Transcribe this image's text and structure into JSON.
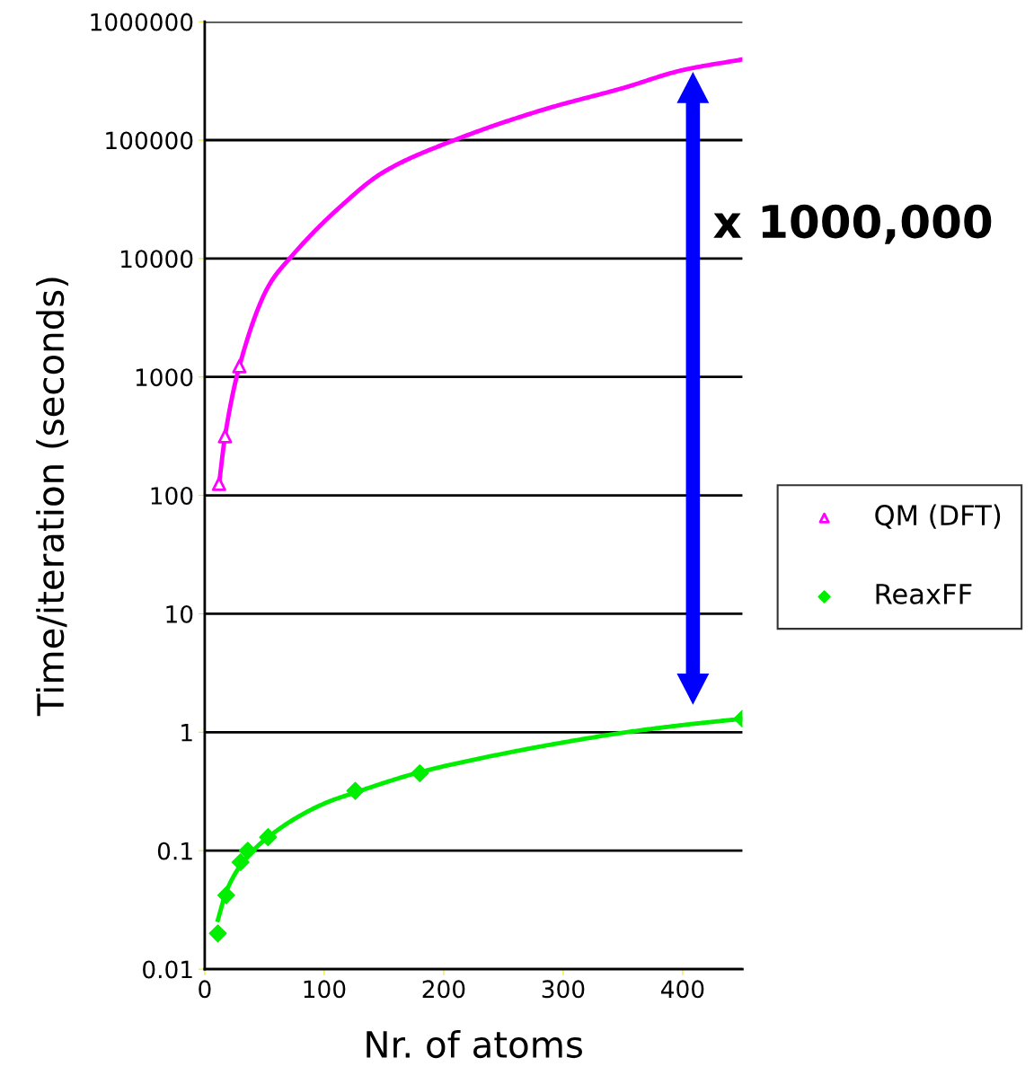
{
  "chart_data": {
    "type": "scatter",
    "xlabel": "Nr. of atoms",
    "ylabel": "Time/iteration (seconds)",
    "log": "y",
    "grid": "y",
    "legend": "right",
    "xlim": [
      0,
      450
    ],
    "xticks": [
      0,
      100,
      200,
      300,
      400
    ],
    "ylim": [
      0.01,
      1000000
    ],
    "yticks": [
      0.01,
      0.1,
      1,
      10,
      100,
      1000,
      10000,
      100000,
      1000000
    ],
    "annotations": [
      "x 1000,000"
    ],
    "series": [
      {
        "name": "QM (DFT)",
        "marker": "triangle",
        "color": "#ff00ff",
        "x": [
          12,
          17,
          29
        ],
        "values": [
          125,
          316,
          1230
        ]
      },
      {
        "name": "ReaxFF",
        "marker": "diamond",
        "color": "#00ee00",
        "x": [
          11,
          18,
          30,
          36,
          53,
          126,
          180,
          450
        ],
        "values": [
          0.02,
          0.042,
          0.08,
          0.1,
          0.13,
          0.32,
          0.45,
          1.3
        ]
      },
      {
        "type": "line",
        "color": "#ff00ff",
        "x": [
          12,
          17,
          29,
          54,
          71,
          111,
          150,
          209,
          286,
          350,
          400,
          450
        ],
        "values": [
          125,
          316,
          1230,
          6000,
          10000,
          26000,
          54000,
          100000,
          184000,
          275000,
          390000,
          480000
        ]
      },
      {
        "type": "line",
        "color": "#00ee00",
        "x": [
          11,
          18,
          30,
          53,
          100,
          126,
          180,
          250,
          300,
          350,
          400,
          450
        ],
        "values": [
          0.026,
          0.045,
          0.075,
          0.13,
          0.25,
          0.31,
          0.46,
          0.66,
          0.82,
          0.99,
          1.15,
          1.3
        ]
      }
    ]
  }
}
